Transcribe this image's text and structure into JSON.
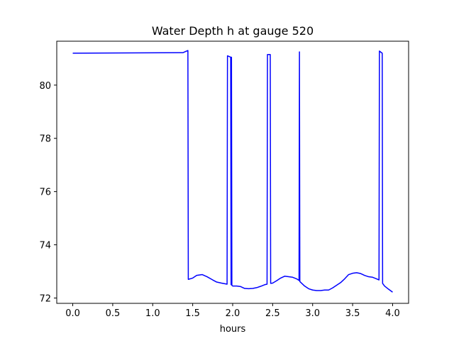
{
  "chart_data": {
    "type": "line",
    "title": "Water Depth h at gauge 520",
    "xlabel": "hours",
    "ylabel": "",
    "xlim": [
      -0.2,
      4.2
    ],
    "ylim": [
      71.8,
      81.65
    ],
    "xticks": [
      0.0,
      0.5,
      1.0,
      1.5,
      2.0,
      2.5,
      3.0,
      3.5,
      4.0
    ],
    "xtick_labels": [
      "0.0",
      "0.5",
      "1.0",
      "1.5",
      "2.0",
      "2.5",
      "3.0",
      "3.5",
      "4.0"
    ],
    "yticks": [
      72,
      74,
      76,
      78,
      80
    ],
    "ytick_labels": [
      "72",
      "74",
      "76",
      "78",
      "80"
    ],
    "grid": false,
    "series": [
      {
        "color": "#0000ff",
        "x": [
          0.0,
          1.38,
          1.44,
          1.445,
          1.5,
          1.55,
          1.62,
          1.68,
          1.75,
          1.8,
          1.86,
          1.93,
          1.935,
          1.975,
          1.98,
          1.985,
          1.99,
          2.0,
          2.05,
          2.1,
          2.15,
          2.2,
          2.25,
          2.3,
          2.35,
          2.4,
          2.43,
          2.435,
          2.47,
          2.475,
          2.5,
          2.55,
          2.6,
          2.65,
          2.7,
          2.75,
          2.8,
          2.83,
          2.835,
          2.84,
          2.9,
          2.95,
          3.0,
          3.05,
          3.1,
          3.15,
          3.2,
          3.25,
          3.3,
          3.35,
          3.4,
          3.45,
          3.5,
          3.55,
          3.6,
          3.65,
          3.7,
          3.75,
          3.8,
          3.83,
          3.835,
          3.87,
          3.875,
          3.9,
          3.95,
          4.0
        ],
        "y": [
          81.2,
          81.22,
          81.3,
          72.7,
          72.75,
          72.85,
          72.88,
          72.8,
          72.68,
          72.6,
          72.56,
          72.52,
          81.1,
          81.05,
          72.5,
          81.05,
          72.48,
          72.45,
          72.45,
          72.43,
          72.36,
          72.35,
          72.36,
          72.39,
          72.44,
          72.5,
          72.52,
          81.15,
          81.15,
          72.55,
          72.56,
          72.65,
          72.75,
          72.82,
          72.8,
          72.78,
          72.72,
          72.66,
          81.25,
          72.62,
          72.45,
          72.35,
          72.3,
          72.28,
          72.28,
          72.3,
          72.3,
          72.38,
          72.48,
          72.58,
          72.72,
          72.88,
          72.93,
          72.95,
          72.92,
          72.85,
          72.8,
          72.78,
          72.72,
          72.68,
          81.28,
          81.2,
          72.55,
          72.45,
          72.33,
          72.22
        ]
      }
    ]
  }
}
